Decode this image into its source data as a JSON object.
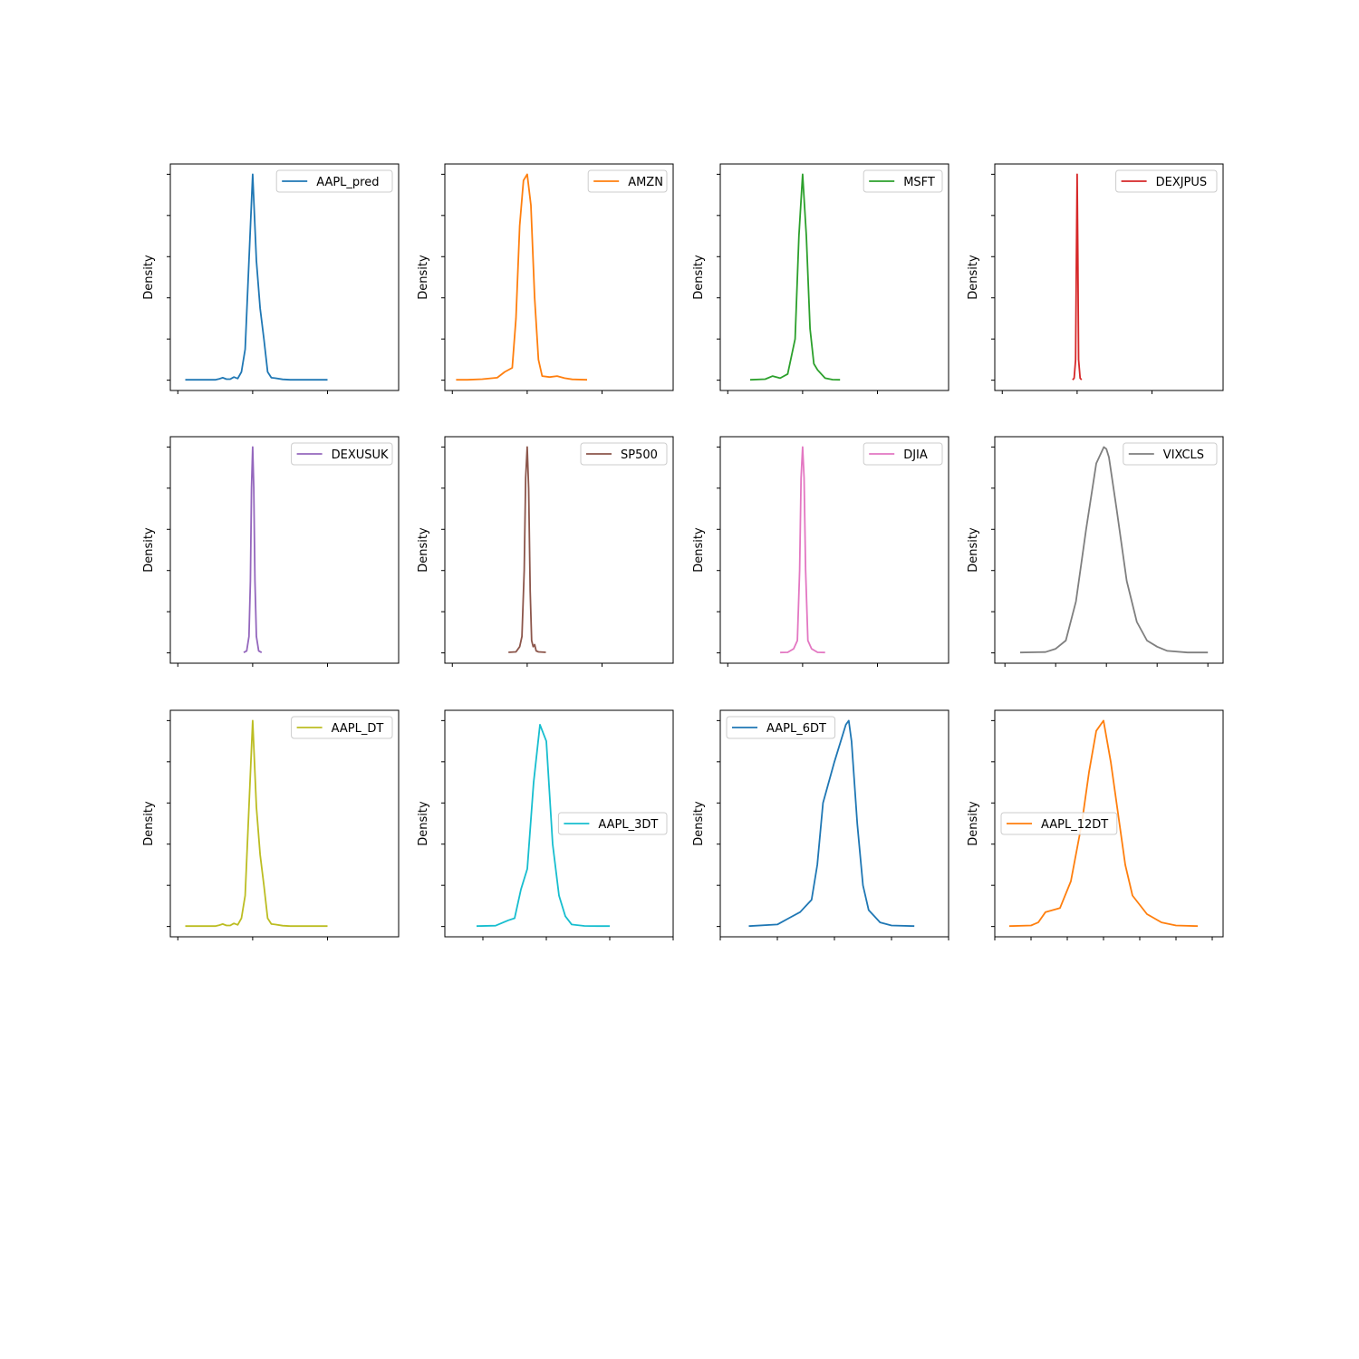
{
  "chart_data": [
    {
      "type": "line",
      "series": [
        {
          "name": "AAPL_pred",
          "color": "#1f77b4",
          "x": [
            -0.9,
            -0.7,
            -0.5,
            -0.45,
            -0.4,
            -0.35,
            -0.3,
            -0.25,
            -0.2,
            -0.15,
            -0.1,
            -0.05,
            0,
            0.05,
            0.1,
            0.15,
            0.2,
            0.25,
            0.3,
            0.4,
            0.5,
            0.6,
            0.8,
            1
          ],
          "y": [
            0.2,
            0.2,
            0.2,
            0.6,
            1.2,
            0.5,
            0.5,
            1.5,
            0.8,
            4,
            15,
            58,
            100,
            58,
            35,
            20,
            4,
            1.2,
            1,
            0.4,
            0.2,
            0.2,
            0.2,
            0.2
          ]
        }
      ],
      "xlim": [
        -1.1,
        1.95
      ],
      "ylim": [
        -5,
        105
      ],
      "ylabel": "Density",
      "legend": "top-right",
      "grid": false
    },
    {
      "type": "line",
      "series": [
        {
          "name": "AMZN",
          "color": "#ff7f0e",
          "x": [
            -0.95,
            -0.8,
            -0.6,
            -0.4,
            -0.3,
            -0.2,
            -0.15,
            -0.1,
            -0.05,
            0,
            0.05,
            0.1,
            0.15,
            0.2,
            0.3,
            0.4,
            0.5,
            0.6,
            0.8
          ],
          "y": [
            0.2,
            0.2,
            0.5,
            1.2,
            4,
            6,
            30,
            75,
            97,
            100,
            85,
            40,
            10,
            2,
            1.5,
            2,
            1,
            0.4,
            0.2
          ]
        }
      ],
      "xlim": [
        -1.1,
        1.95
      ],
      "ylim": [
        -5,
        105
      ],
      "ylabel": "Density",
      "legend": "top-right",
      "grid": false
    },
    {
      "type": "line",
      "series": [
        {
          "name": "MSFT",
          "color": "#2ca02c",
          "x": [
            -0.7,
            -0.5,
            -0.4,
            -0.3,
            -0.2,
            -0.1,
            -0.05,
            0,
            0.05,
            0.1,
            0.15,
            0.2,
            0.3,
            0.4,
            0.5
          ],
          "y": [
            0.2,
            0.5,
            2,
            1,
            3,
            20,
            70,
            100,
            70,
            25,
            8,
            5,
            1,
            0.3,
            0.2
          ]
        }
      ],
      "xlim": [
        -1.1,
        1.95
      ],
      "ylim": [
        -5,
        105
      ],
      "ylabel": "Density",
      "legend": "top-right",
      "grid": false
    },
    {
      "type": "line",
      "series": [
        {
          "name": "DEXJPUS",
          "color": "#d62728",
          "x": [
            -0.06,
            -0.04,
            -0.02,
            -0.01,
            0,
            0.01,
            0.02,
            0.04,
            0.06
          ],
          "y": [
            0.2,
            1,
            10,
            60,
            100,
            60,
            10,
            1,
            0.2
          ]
        }
      ],
      "xlim": [
        -1.1,
        1.95
      ],
      "ylim": [
        -5,
        105
      ],
      "ylabel": "Density",
      "legend": "top-right",
      "grid": false
    },
    {
      "type": "line",
      "series": [
        {
          "name": "DEXUSUK",
          "color": "#9467bd",
          "x": [
            -0.12,
            -0.08,
            -0.05,
            -0.03,
            -0.015,
            0,
            0.015,
            0.03,
            0.05,
            0.08,
            0.12
          ],
          "y": [
            0.2,
            1,
            8,
            35,
            80,
            100,
            80,
            35,
            8,
            1,
            0.2
          ]
        }
      ],
      "xlim": [
        -1.1,
        1.95
      ],
      "ylim": [
        -5,
        105
      ],
      "ylabel": "Density",
      "legend": "top-right",
      "grid": false
    },
    {
      "type": "line",
      "series": [
        {
          "name": "SP500",
          "color": "#8c564b",
          "x": [
            -0.25,
            -0.15,
            -0.1,
            -0.07,
            -0.04,
            -0.02,
            0,
            0.02,
            0.04,
            0.06,
            0.08,
            0.1,
            0.12,
            0.15,
            0.25
          ],
          "y": [
            0.3,
            0.5,
            3,
            8,
            40,
            85,
            100,
            80,
            30,
            6,
            3,
            4,
            1,
            0.5,
            0.3
          ]
        }
      ],
      "xlim": [
        -1.1,
        1.95
      ],
      "ylim": [
        -5,
        105
      ],
      "ylabel": "Density",
      "legend": "top-right",
      "grid": false
    },
    {
      "type": "line",
      "series": [
        {
          "name": "DJIA",
          "color": "#e377c2",
          "x": [
            -0.3,
            -0.2,
            -0.12,
            -0.07,
            -0.04,
            -0.02,
            0,
            0.02,
            0.04,
            0.07,
            0.12,
            0.2,
            0.3
          ],
          "y": [
            0.2,
            0.3,
            2,
            6,
            40,
            85,
            100,
            85,
            40,
            6,
            2,
            0.3,
            0.2
          ]
        }
      ],
      "xlim": [
        -1.1,
        1.95
      ],
      "ylim": [
        -5,
        105
      ],
      "ylabel": "Density",
      "legend": "top-right",
      "grid": false
    },
    {
      "type": "line",
      "series": [
        {
          "name": "VIXCLS",
          "color": "#7f7f7f",
          "x": [
            -1.7,
            -1.2,
            -1,
            -0.8,
            -0.6,
            -0.4,
            -0.2,
            -0.05,
            0,
            0.05,
            0.2,
            0.4,
            0.6,
            0.8,
            1,
            1.2,
            1.6,
            2
          ],
          "y": [
            0.2,
            0.4,
            2,
            6,
            25,
            60,
            92,
            100,
            99,
            95,
            70,
            35,
            15,
            6,
            3,
            1,
            0.2,
            0.2
          ]
        }
      ],
      "xlim": [
        -2.2,
        2.3
      ],
      "ylim": [
        -5,
        105
      ],
      "ylabel": "Density",
      "legend": "top-right",
      "grid": false
    },
    {
      "type": "line",
      "series": [
        {
          "name": "AAPL_DT",
          "color": "#bcbd22",
          "x": [
            -0.9,
            -0.7,
            -0.5,
            -0.45,
            -0.4,
            -0.35,
            -0.3,
            -0.25,
            -0.2,
            -0.15,
            -0.1,
            -0.05,
            0,
            0.05,
            0.1,
            0.15,
            0.2,
            0.25,
            0.3,
            0.4,
            0.5,
            0.6,
            0.8,
            1
          ],
          "y": [
            0.2,
            0.2,
            0.2,
            0.6,
            1.2,
            0.5,
            0.5,
            1.5,
            0.8,
            4,
            15,
            58,
            100,
            58,
            35,
            20,
            4,
            1.2,
            1,
            0.4,
            0.2,
            0.2,
            0.2,
            0.2
          ]
        }
      ],
      "xlim": [
        -1.1,
        1.95
      ],
      "ylim": [
        -5,
        105
      ],
      "ylabel": "Density",
      "legend": "top-right",
      "grid": false
    },
    {
      "type": "line",
      "series": [
        {
          "name": "AAPL_3DT",
          "color": "#17becf",
          "x": [
            -1.1,
            -0.8,
            -0.6,
            -0.5,
            -0.4,
            -0.3,
            -0.2,
            -0.1,
            0,
            0.05,
            0.1,
            0.2,
            0.3,
            0.4,
            0.6,
            0.8,
            1
          ],
          "y": [
            0.2,
            0.4,
            3,
            4,
            18,
            28,
            70,
            98,
            90,
            65,
            40,
            15,
            5,
            1,
            0.3,
            0.2,
            0.2
          ]
        }
      ],
      "xlim": [
        -1.6,
        2.0
      ],
      "ylim": [
        -5,
        105
      ],
      "ylabel": "Density",
      "legend": "center-right",
      "grid": false
    },
    {
      "type": "line",
      "series": [
        {
          "name": "AAPL_6DT",
          "color": "#1f77b4",
          "x": [
            -1.5,
            -1.0,
            -0.8,
            -0.6,
            -0.4,
            -0.3,
            -0.2,
            0,
            0.2,
            0.25,
            0.3,
            0.4,
            0.5,
            0.6,
            0.8,
            1,
            1.4
          ],
          "y": [
            0.2,
            1,
            4,
            7,
            13,
            30,
            60,
            80,
            98,
            100,
            90,
            50,
            20,
            8,
            2,
            0.5,
            0.2
          ]
        }
      ],
      "xlim": [
        -2.0,
        2.0
      ],
      "ylim": [
        -5,
        105
      ],
      "ylabel": "Density",
      "legend": "top-left",
      "grid": false
    },
    {
      "type": "line",
      "series": [
        {
          "name": "AAPL_12DT",
          "color": "#ff7f0e",
          "x": [
            -2.6,
            -2.0,
            -1.8,
            -1.6,
            -1.4,
            -1.2,
            -0.9,
            -0.6,
            -0.4,
            -0.2,
            0,
            0.2,
            0.4,
            0.6,
            0.8,
            1.2,
            1.6,
            2.0,
            2.6
          ],
          "y": [
            0.2,
            0.5,
            2,
            7,
            8,
            9,
            22,
            50,
            75,
            95,
            100,
            80,
            55,
            30,
            15,
            6,
            2,
            0.5,
            0.2
          ]
        }
      ],
      "xlim": [
        -3.0,
        3.3
      ],
      "ylim": [
        -5,
        105
      ],
      "ylabel": "Density",
      "legend": "center-left",
      "grid": false
    }
  ]
}
